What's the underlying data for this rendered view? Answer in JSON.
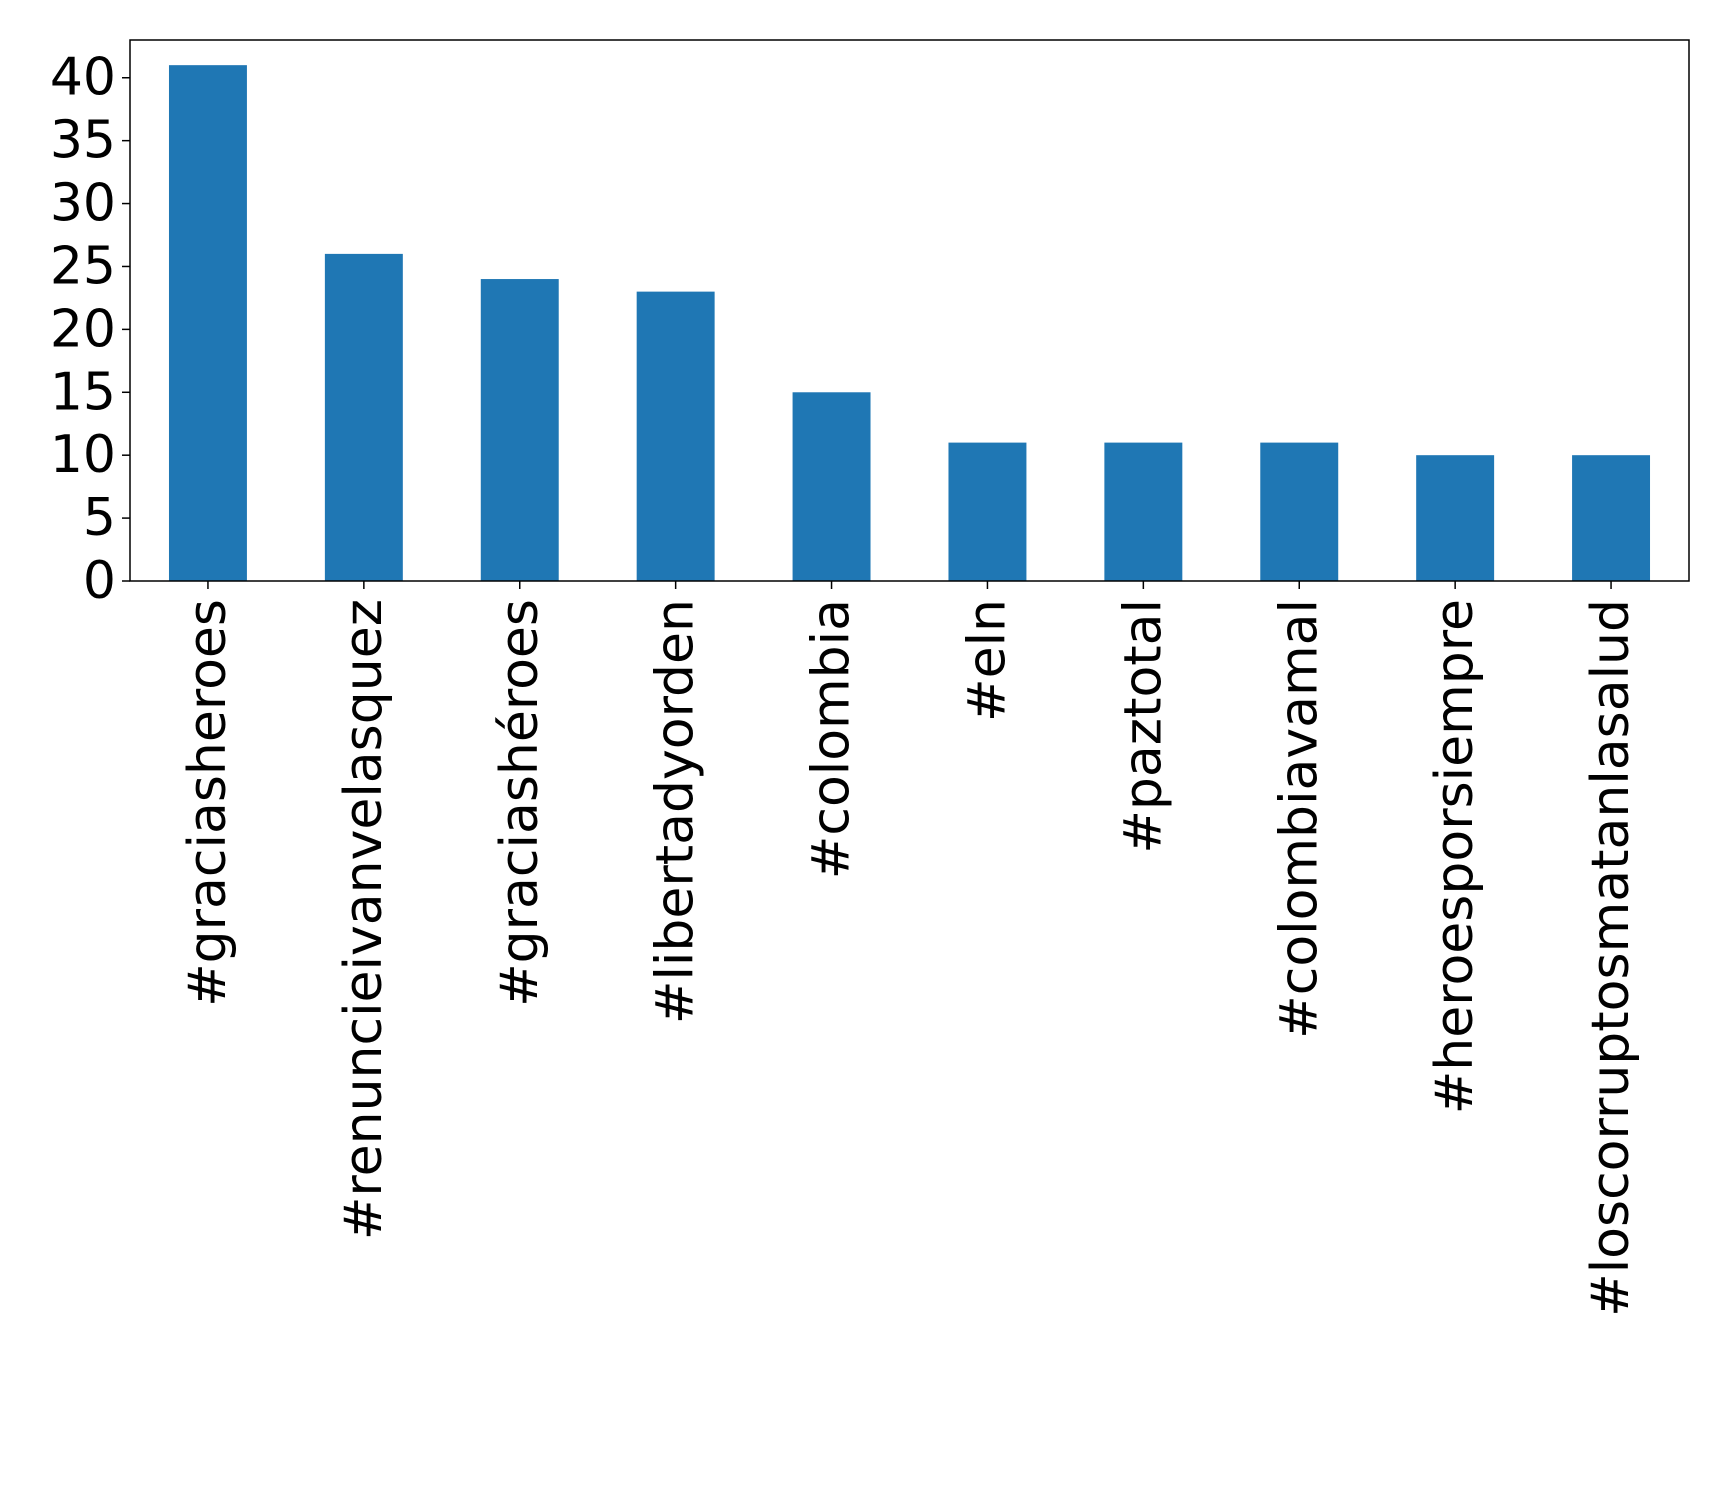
{
  "chart_data": {
    "type": "bar",
    "title": "",
    "xlabel": "",
    "ylabel": "",
    "categories": [
      "#graciasheroes",
      "#renuncieivanvelasquez",
      "#graciashéroes",
      "#libertadyorden",
      "#colombia",
      "#eln",
      "#paztotal",
      "#colombiavamal",
      "#heroesporsiempre",
      "#loscorruptosmatanlasalud"
    ],
    "values": [
      41,
      26,
      24,
      23,
      15,
      11,
      11,
      11,
      10,
      10
    ],
    "ylim": [
      0,
      43
    ],
    "yticks": [
      0,
      5,
      10,
      15,
      20,
      25,
      30,
      35,
      40
    ],
    "bar_color": "#1f77b4",
    "grid": false,
    "legend": "none"
  }
}
